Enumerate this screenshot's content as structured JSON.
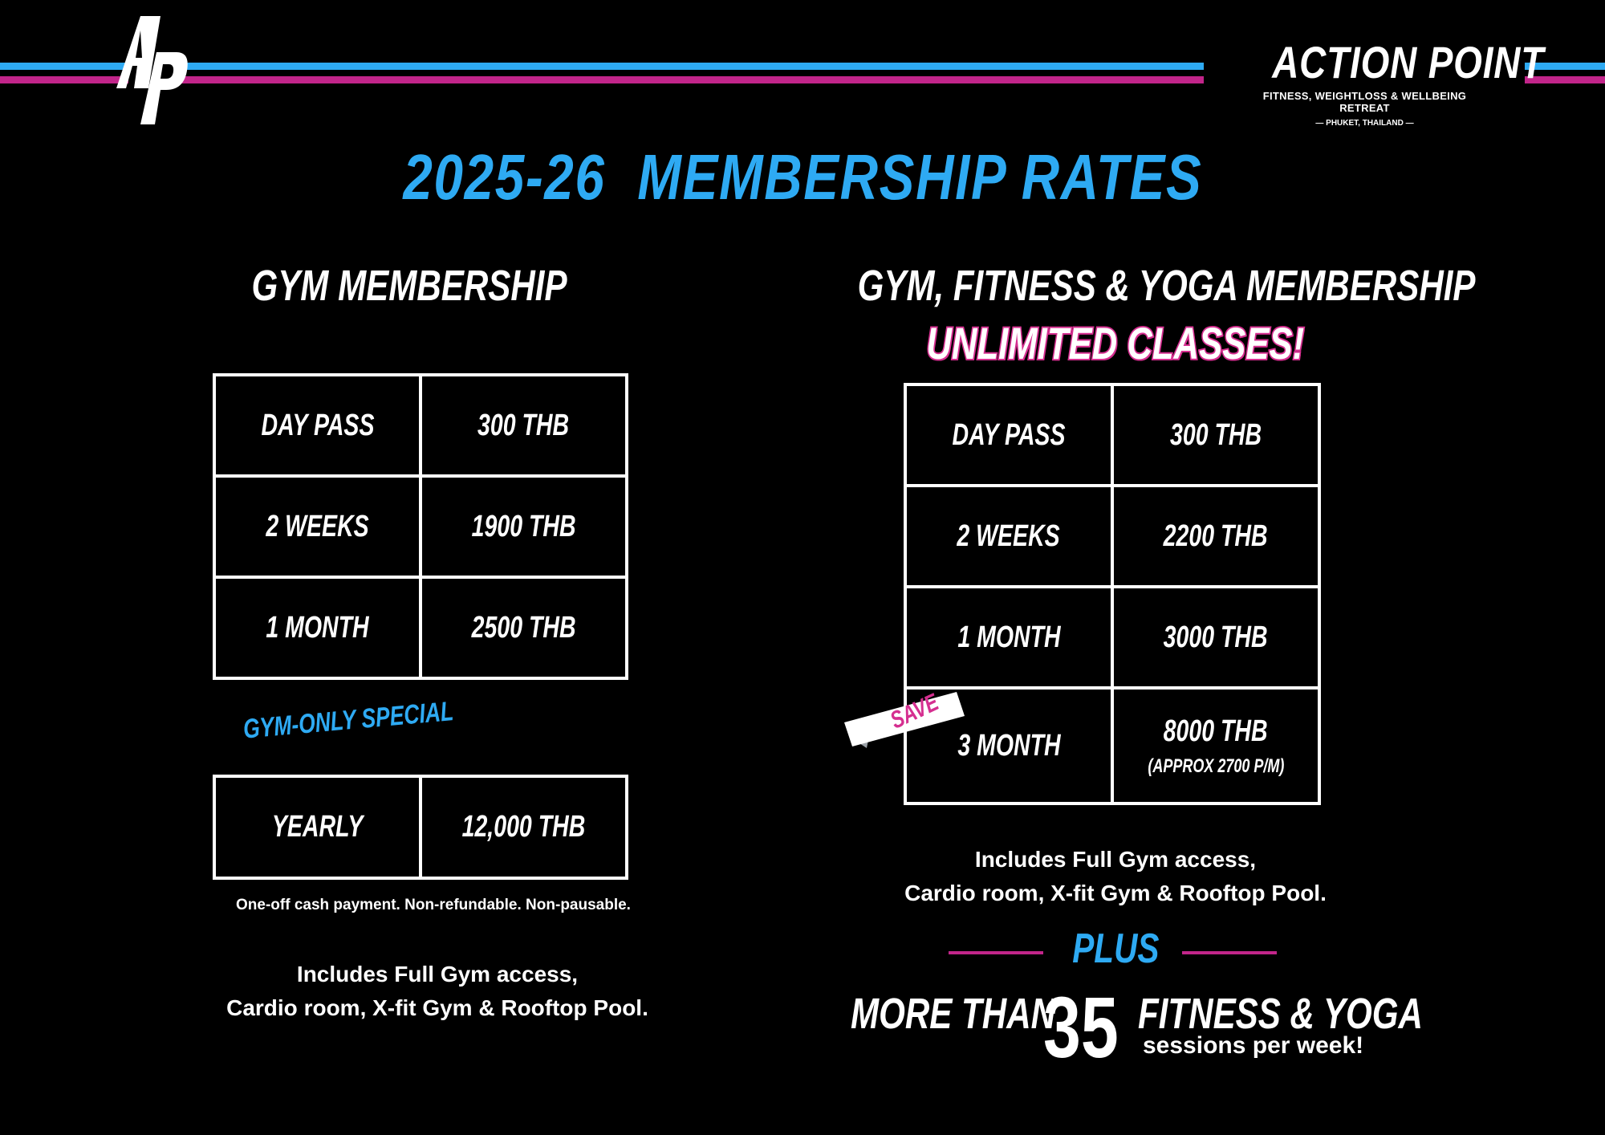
{
  "colors": {
    "blue": "#2eaaf3",
    "magenta": "#d52f90",
    "background": "#000000"
  },
  "logo": {
    "icon": "ap-logo-icon"
  },
  "brand": {
    "name": "ACTION POINT",
    "tagline": "FITNESS, WEIGHTLOSS & WELLBEING RETREAT",
    "location": "— PHUKET, THAILAND —"
  },
  "title": "2025-26  MEMBERSHIP RATES",
  "gym": {
    "heading": "GYM MEMBERSHIP",
    "rows": [
      {
        "label": "DAY PASS",
        "price": "300 THB"
      },
      {
        "label": "2 WEEKS",
        "price": "1900 THB"
      },
      {
        "label": "1 MONTH",
        "price": "2500 THB"
      }
    ],
    "special_label": "GYM-ONLY SPECIAL",
    "special_row": {
      "label": "YEARLY",
      "price": "12,000 THB"
    },
    "special_note": "One-off cash payment. Non-refundable. Non-pausable.",
    "includes_line1": "Includes Full Gym access,",
    "includes_line2": "Cardio room, X-fit Gym & Rooftop Pool."
  },
  "combo": {
    "heading": "GYM, FITNESS & YOGA MEMBERSHIP",
    "subheading": "UNLIMITED CLASSES!",
    "rows": [
      {
        "label": "DAY PASS",
        "price": "300 THB"
      },
      {
        "label": "2 WEEKS",
        "price": "2200 THB"
      },
      {
        "label": "1 MONTH",
        "price": "3000 THB"
      },
      {
        "label": "3 MONTH",
        "price": "8000 THB",
        "note": "(APPROX 2700 P/M)"
      }
    ],
    "save_badge": "SAVE",
    "includes_line1": "Includes Full Gym access,",
    "includes_line2": "Cardio room, X-fit Gym & Rooftop Pool.",
    "plus": "PLUS",
    "more_than": "MORE THAN",
    "count": "35",
    "classes": "FITNESS & YOGA",
    "sessions": "sessions per week!"
  }
}
